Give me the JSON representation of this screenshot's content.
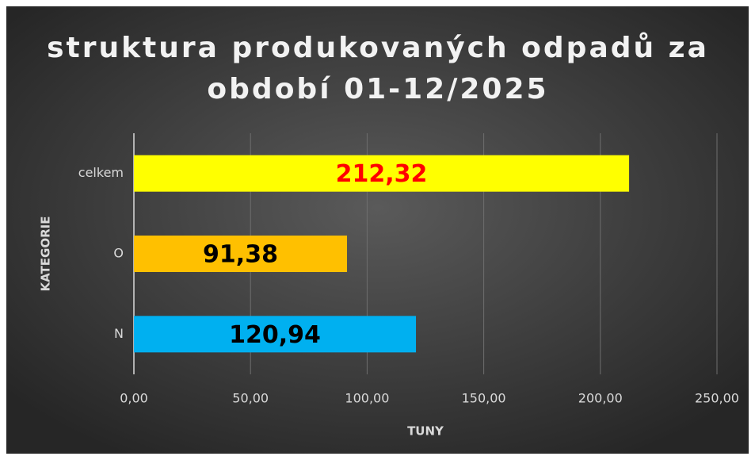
{
  "chart_data": {
    "type": "bar",
    "orientation": "horizontal",
    "title": [
      "struktura produkovaných odpadů za",
      "období  01-12/2025"
    ],
    "categories": [
      "celkem",
      "O",
      "N"
    ],
    "values": [
      212.32,
      91.38,
      120.94
    ],
    "value_labels": [
      "212,32",
      "91,38",
      "120,94"
    ],
    "colors": [
      "#ffff00",
      "#ffc000",
      "#00b0f0"
    ],
    "value_label_colors": [
      "#ff0000",
      "#000000",
      "#000000"
    ],
    "xlim": [
      0,
      250
    ],
    "xticks": [
      {
        "value": 0,
        "label": "0,00"
      },
      {
        "value": 50,
        "label": "50,00"
      },
      {
        "value": 100,
        "label": "100,00"
      },
      {
        "value": 150,
        "label": "150,00"
      },
      {
        "value": 200,
        "label": "200,00"
      },
      {
        "value": 250,
        "label": "250,00"
      }
    ],
    "xlabel": "TUNY",
    "ylabel": "KATEGORIE",
    "grid": true
  }
}
